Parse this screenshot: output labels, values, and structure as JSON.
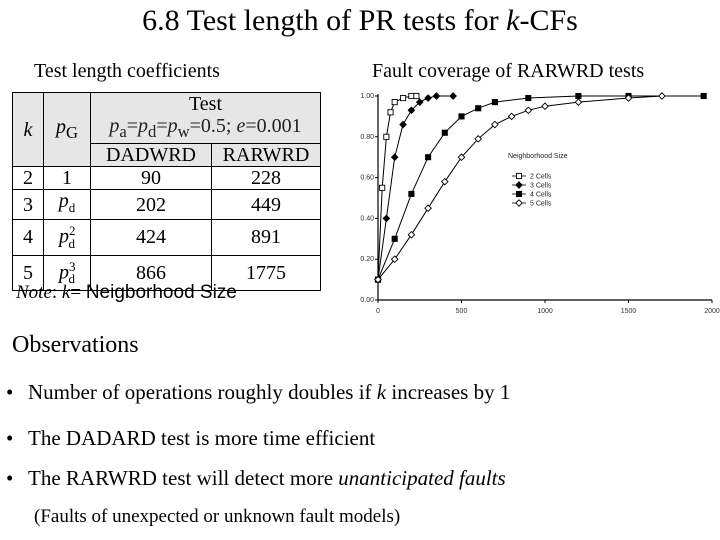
{
  "slide": {
    "title_pre": "6.8 Test length of PR tests for ",
    "title_k": "k",
    "title_post": "-CFs",
    "left_subtitle": "Test length coefficients",
    "right_subtitle": "Fault coverage of RARWRD tests"
  },
  "table": {
    "header_k": "k",
    "header_pg": "p",
    "header_pg_sub": "G",
    "header_test": "Test",
    "cond": {
      "pa": "p",
      "pa_sub": "a",
      "eq1": "=",
      "pd": "p",
      "pd_sub": "d",
      "eq2": "=",
      "pw": "p",
      "pw_sub": "w",
      "val": "=0.5; ",
      "e": "e",
      "eval": "=0.001"
    },
    "col1": "DADWRD",
    "col2": "RARWRD",
    "rows": [
      {
        "k": "2",
        "pg": "1",
        "pg_sub": "",
        "pg_sup": "",
        "dadwrd": "90",
        "rarwrd": "228"
      },
      {
        "k": "3",
        "pg": "p",
        "pg_sub": "d",
        "pg_sup": "",
        "dadwrd": "202",
        "rarwrd": "449"
      },
      {
        "k": "4",
        "pg": "p",
        "pg_sub": "d",
        "pg_sup": "2",
        "dadwrd": "424",
        "rarwrd": "891"
      },
      {
        "k": "5",
        "pg": "p",
        "pg_sub": "d",
        "pg_sup": "3",
        "dadwrd": "866",
        "rarwrd": "1775"
      }
    ]
  },
  "note": {
    "label": "Note",
    "colon": ": ",
    "k": "k",
    "text_serif": "= ",
    "text_sans": "Neigborhood Size"
  },
  "observations": {
    "heading": "Observations",
    "bullet_char": "•",
    "b1_pre": "Number of operations roughly doubles if ",
    "b1_k": "k",
    "b1_post": " increases by 1",
    "b2": "The DADARD test is more time efficient",
    "b3_pre": "The RARWRD test will detect more ",
    "b3_em": "unanticipated faults",
    "paren": "(Faults of unexpected or unknown fault models)"
  },
  "chart_data": {
    "type": "line",
    "title": "Fault coverage of RARWRD tests",
    "xlim": [
      0,
      2000
    ],
    "ylim": [
      0,
      1.0
    ],
    "x_ticks": [
      0,
      500,
      1000,
      1500,
      2000
    ],
    "x_tick_labels": [
      "0",
      "500",
      "1000",
      "1500",
      "2000"
    ],
    "y_ticks": [
      0,
      0.2,
      0.4,
      0.6,
      0.8,
      1.0
    ],
    "y_tick_labels": [
      "0.00",
      "0.20",
      "0.40",
      "0.60",
      "0.80",
      "1.00"
    ],
    "legend_title": "Neighborhood Size",
    "legend_placement": "right",
    "series": [
      {
        "name": "2 Cells",
        "marker": "square-open",
        "x": [
          0,
          25,
          50,
          75,
          100,
          150,
          200,
          230
        ],
        "y": [
          0.1,
          0.55,
          0.8,
          0.92,
          0.97,
          0.99,
          1.0,
          1.0
        ]
      },
      {
        "name": "3 Cells",
        "marker": "diamond",
        "x": [
          0,
          50,
          100,
          150,
          200,
          250,
          300,
          350,
          450
        ],
        "y": [
          0.1,
          0.4,
          0.7,
          0.86,
          0.93,
          0.97,
          0.99,
          1.0,
          1.0
        ]
      },
      {
        "name": "4 Cells",
        "marker": "square-filled",
        "x": [
          0,
          100,
          200,
          300,
          400,
          500,
          600,
          700,
          900,
          1200,
          1500,
          1950
        ],
        "y": [
          0.1,
          0.3,
          0.52,
          0.7,
          0.82,
          0.9,
          0.94,
          0.97,
          0.99,
          1.0,
          1.0,
          1.0
        ]
      },
      {
        "name": "5 Cells",
        "marker": "diamond-open",
        "x": [
          0,
          100,
          200,
          300,
          400,
          500,
          600,
          700,
          800,
          900,
          1000,
          1200,
          1500,
          1700
        ],
        "y": [
          0.1,
          0.2,
          0.32,
          0.45,
          0.58,
          0.7,
          0.79,
          0.86,
          0.9,
          0.93,
          0.95,
          0.97,
          0.99,
          1.0
        ]
      }
    ]
  }
}
